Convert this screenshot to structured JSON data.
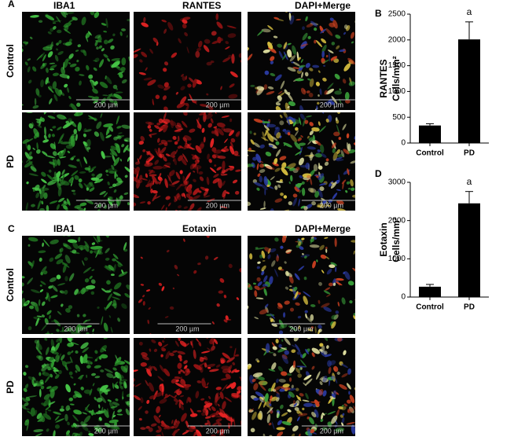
{
  "panels": [
    {
      "letter": "A",
      "columns": [
        "IBA1",
        "RANTES",
        "DAPI+Merge"
      ],
      "rows": [
        "Control",
        "PD"
      ],
      "scale_bar": "200 µm"
    },
    {
      "letter": "C",
      "columns": [
        "IBA1",
        "Eotaxin",
        "DAPI+Merge"
      ],
      "rows": [
        "Control",
        "PD"
      ],
      "scale_bar": "200 µm"
    }
  ],
  "chart_data": [
    {
      "type": "bar",
      "panel": "B",
      "y_label": [
        "RANTES",
        "Cells/mm²"
      ],
      "categories": [
        "Control",
        "PD"
      ],
      "values": [
        340,
        2010
      ],
      "errors": [
        35,
        340
      ],
      "annotations": [
        {
          "category": "PD",
          "text": "a"
        }
      ],
      "color": "#000000",
      "ylim": [
        0,
        2500
      ],
      "yticks": [
        0,
        500,
        1000,
        1500,
        2000,
        2500
      ]
    },
    {
      "type": "bar",
      "panel": "D",
      "y_label": [
        "Eotaxin",
        "Cells/mm²"
      ],
      "categories": [
        "Control",
        "PD"
      ],
      "values": [
        270,
        2450
      ],
      "errors": [
        60,
        310
      ],
      "annotations": [
        {
          "category": "PD",
          "text": "a"
        }
      ],
      "color": "#000000",
      "ylim": [
        0,
        3000
      ],
      "yticks": [
        0,
        1000,
        2000,
        3000
      ]
    }
  ]
}
